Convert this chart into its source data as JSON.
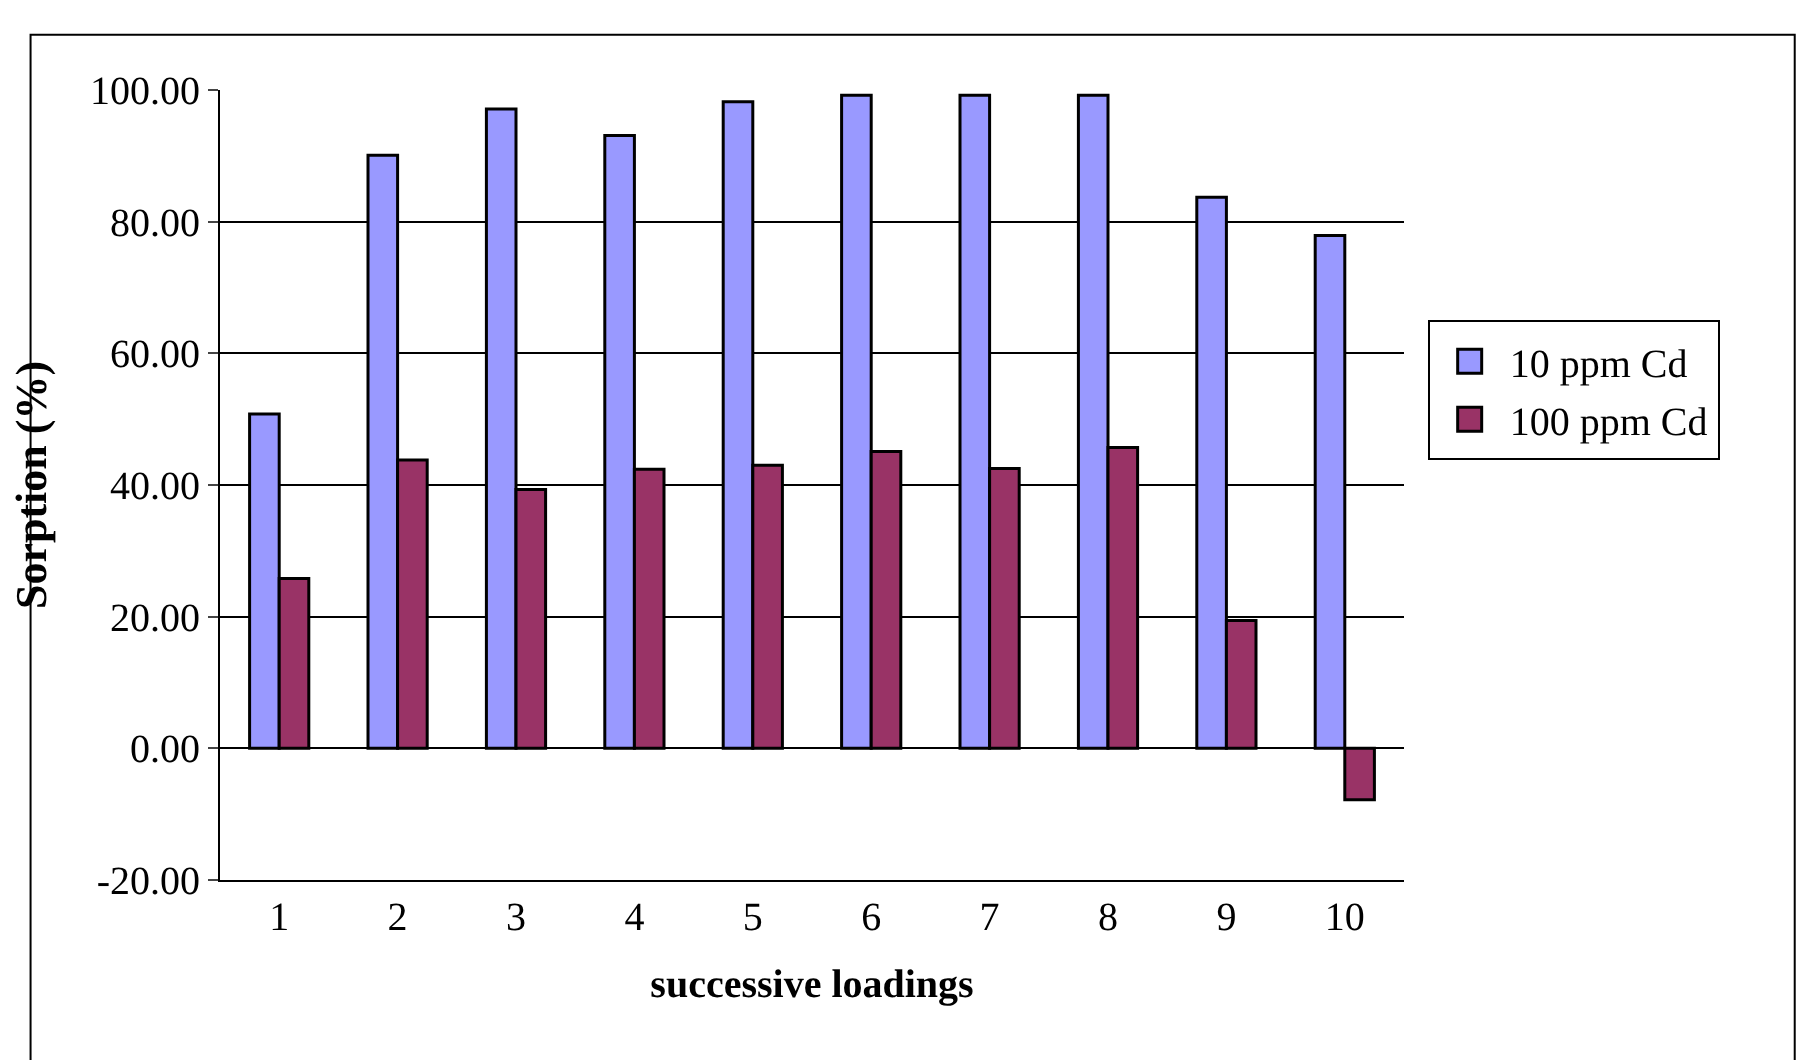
{
  "chart_data": {
    "type": "bar",
    "xlabel": "successive loadings",
    "ylabel": "Sorption (%)",
    "categories": [
      "1",
      "2",
      "3",
      "4",
      "5",
      "6",
      "7",
      "8",
      "9",
      "10"
    ],
    "series": [
      {
        "name": "10 ppm Cd",
        "color": "#9999ff",
        "values": [
          50.8,
          90.1,
          97.1,
          93.1,
          98.2,
          99.2,
          99.2,
          99.2,
          83.7,
          77.9
        ]
      },
      {
        "name": "100 ppm Cd",
        "color": "#993366",
        "values": [
          25.8,
          43.8,
          39.3,
          42.4,
          43.0,
          45.1,
          42.5,
          45.7,
          19.4,
          -7.8
        ]
      }
    ],
    "ylim": [
      -20,
      100
    ],
    "yticks": [
      {
        "value": -20,
        "label": "-20.00"
      },
      {
        "value": 0,
        "label": "0.00"
      },
      {
        "value": 20,
        "label": "20.00"
      },
      {
        "value": 40,
        "label": "40.00"
      },
      {
        "value": 60,
        "label": "60.00"
      },
      {
        "value": 80,
        "label": "80.00"
      },
      {
        "value": 100,
        "label": "100.00"
      }
    ],
    "grid": "y",
    "legend": "right"
  }
}
